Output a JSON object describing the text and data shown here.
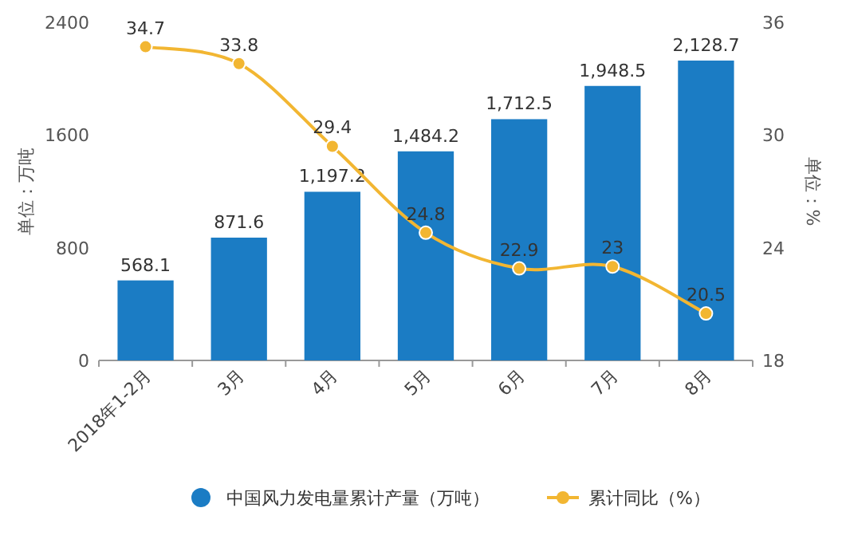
{
  "chart_data": {
    "type": "bar",
    "categories": [
      "2018年1-2月",
      "3月",
      "4月",
      "5月",
      "6月",
      "7月",
      "8月"
    ],
    "series": [
      {
        "name": "中国风力发电量累计产量（万吨）",
        "color": "#1b7cc4",
        "values": [
          568.1,
          871.6,
          1197.2,
          1484.2,
          1712.5,
          1948.5,
          2128.7
        ],
        "value_labels": [
          "568.1",
          "871.6",
          "1,197.2",
          "1,484.2",
          "1,712.5",
          "1,948.5",
          "2,128.7"
        ]
      },
      {
        "name": "累计同比（%）",
        "type": "line",
        "axis": "y2",
        "color": "#f2b632",
        "marker": "circle",
        "values": [
          34.7,
          33.8,
          29.4,
          24.8,
          22.9,
          23,
          20.5
        ]
      }
    ],
    "ylabel": "单位：万吨",
    "y2label": "单位：%",
    "ylim": [
      0,
      2400
    ],
    "yticks": [
      0,
      800,
      1600,
      2400
    ],
    "y2lim": [
      18,
      36
    ],
    "y2ticks": [
      18,
      24,
      30,
      36
    ],
    "data_labels": true,
    "legend": "bottom",
    "grid": false
  }
}
